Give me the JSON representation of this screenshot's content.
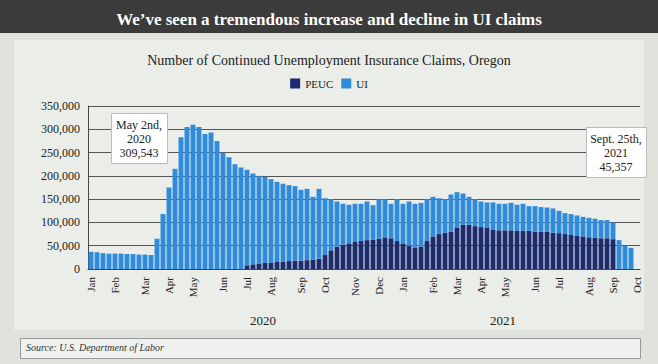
{
  "chart_data": {
    "type": "bar",
    "title": "We’ve seen a tremendous increase and decline in UI claims",
    "subtitle": "Number of Continued Unemployment Insurance Claims, Oregon",
    "source": "Source: U.S. Department of Labor",
    "stacked": true,
    "grid": true,
    "legend": "top",
    "categories": [
      "Jan",
      null,
      null,
      null,
      "Feb",
      null,
      null,
      null,
      null,
      "Mar",
      null,
      null,
      null,
      "Apr",
      null,
      null,
      null,
      "May",
      null,
      null,
      null,
      null,
      "Jun",
      null,
      null,
      null,
      "Jul",
      null,
      null,
      null,
      "Aug",
      null,
      null,
      null,
      null,
      "Sep",
      null,
      null,
      null,
      "Oct",
      null,
      null,
      null,
      null,
      "Nov",
      null,
      null,
      null,
      "Dec",
      null,
      null,
      null,
      "Jan",
      null,
      null,
      null,
      null,
      "Feb",
      null,
      null,
      null,
      "Mar",
      null,
      null,
      null,
      "Apr",
      null,
      null,
      null,
      "May",
      null,
      null,
      null,
      null,
      "Jun",
      null,
      null,
      null,
      "Jul",
      null,
      null,
      null,
      null,
      "Aug",
      null,
      null,
      null,
      "Sep",
      null,
      null,
      null,
      "Oct"
    ],
    "year_labels": [
      "2020",
      "2021"
    ],
    "series": [
      {
        "name": "PEUC",
        "color": "#1c2a6e",
        "values": [
          0,
          0,
          0,
          0,
          0,
          0,
          0,
          0,
          0,
          0,
          0,
          0,
          0,
          0,
          0,
          0,
          0,
          0,
          0,
          0,
          0,
          0,
          0,
          0,
          0,
          0,
          8000,
          10000,
          12000,
          13000,
          14000,
          15000,
          16000,
          17000,
          18000,
          18000,
          19000,
          20000,
          22000,
          30000,
          40000,
          48000,
          52000,
          55000,
          58000,
          60000,
          62000,
          63000,
          65000,
          68000,
          66000,
          60000,
          55000,
          50000,
          45000,
          48000,
          60000,
          70000,
          75000,
          78000,
          80000,
          88000,
          95000,
          95000,
          92000,
          90000,
          88000,
          85000,
          83000,
          83000,
          83000,
          82000,
          82000,
          82000,
          80000,
          80000,
          80000,
          78000,
          77000,
          75000,
          73000,
          72000,
          70000,
          68000,
          67000,
          66000,
          66000,
          64000,
          0,
          0,
          0,
          null
        ]
      },
      {
        "name": "UI",
        "color": "#2f8bdb",
        "values": [
          37000,
          36000,
          34000,
          33000,
          33000,
          33000,
          32000,
          32000,
          31000,
          31000,
          30000,
          65000,
          118000,
          175000,
          215000,
          283000,
          305000,
          309543,
          305000,
          290000,
          293000,
          275000,
          250000,
          240000,
          225000,
          218000,
          205000,
          195000,
          188000,
          185000,
          179000,
          172000,
          167000,
          163000,
          160000,
          152000,
          153000,
          135000,
          150000,
          122000,
          110000,
          97000,
          88000,
          83000,
          82000,
          80000,
          83000,
          74000,
          85000,
          82000,
          74000,
          90000,
          85000,
          95000,
          95000,
          94000,
          90000,
          85000,
          77000,
          72000,
          80000,
          77000,
          67000,
          60000,
          58000,
          55000,
          55000,
          58000,
          57000,
          57000,
          59000,
          56000,
          58000,
          53000,
          55000,
          53000,
          52000,
          52000,
          48000,
          45000,
          45000,
          43000,
          42000,
          42000,
          41000,
          39000,
          39000,
          36000,
          62000,
          50000,
          45357,
          null
        ]
      }
    ],
    "ylim": [
      0,
      350000
    ],
    "yticks": [
      0,
      {
        "value": 50000,
        "label": "50,000"
      },
      {
        "value": 100000,
        "label": "100,000"
      },
      {
        "value": 150000,
        "label": "150,000"
      },
      {
        "value": 200000,
        "label": "200,000"
      },
      {
        "value": 250000,
        "label": "250,000"
      },
      {
        "value": 300000,
        "label": "300,000"
      },
      {
        "value": 350000,
        "label": "350,000"
      }
    ],
    "annotations": [
      {
        "text": [
          "May 2nd,",
          "2020",
          "309,543"
        ]
      },
      {
        "text": [
          "Sept. 25th,",
          "2021",
          "45,357"
        ]
      }
    ]
  }
}
